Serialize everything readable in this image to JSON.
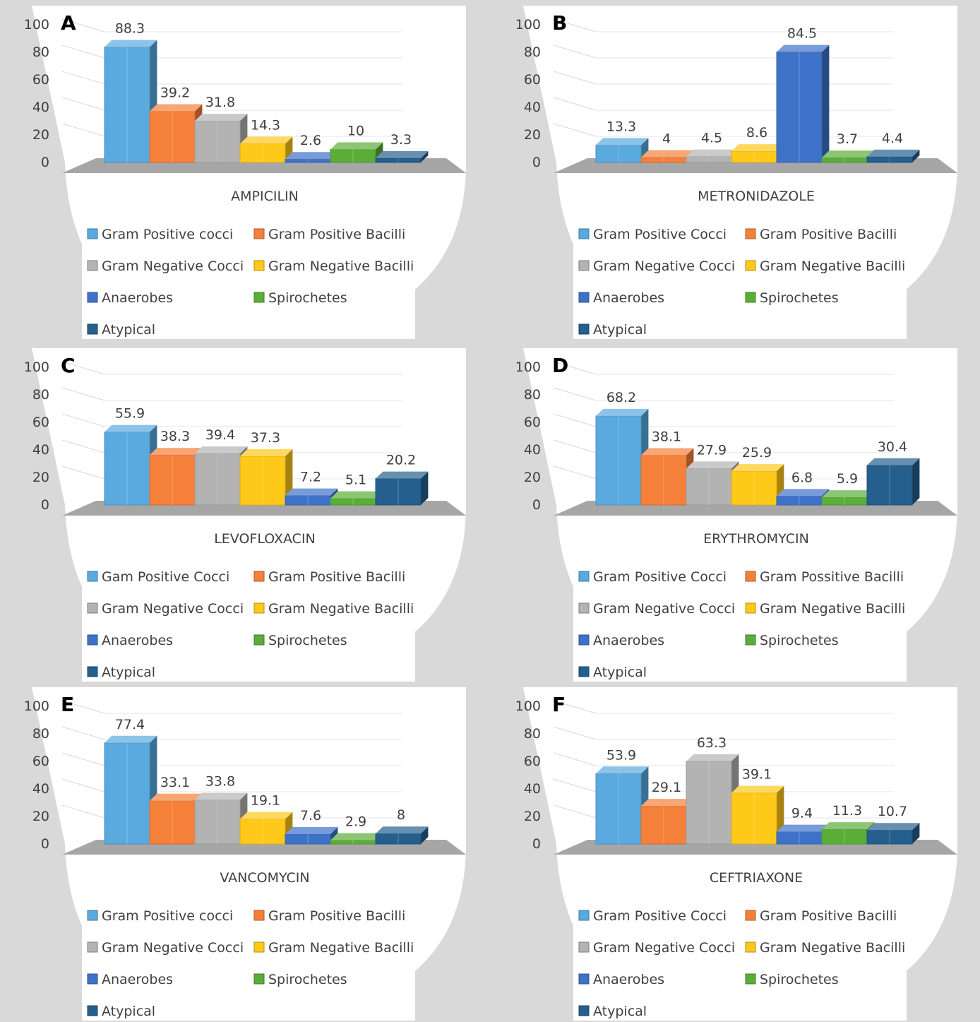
{
  "colors": {
    "gpc": "#5aaae0",
    "gpb": "#f5803a",
    "gnc": "#b3b3b3",
    "gnb": "#ffc91a",
    "anaerobes": "#3e72c8",
    "spirochetes": "#5aae38",
    "atypical": "#245f8e",
    "background": "#d9d9d9",
    "plot": "#ffffff",
    "floor": "#a6a6a6",
    "text": "#404040"
  },
  "chart_data": [
    {
      "type": "bar",
      "panel_label": "A",
      "categories": [
        "AMPICILIN"
      ],
      "xlabel": "AMPICILIN",
      "ylim": [
        0,
        100
      ],
      "yticks": [
        "0",
        "20",
        "40",
        "60",
        "80",
        "100"
      ],
      "legend_position": "bottom",
      "series": [
        {
          "name": "Gram Positive cocci",
          "color_key": "gpc",
          "values": [
            88.3
          ],
          "label": "88.3"
        },
        {
          "name": "Gram Positive Bacilli",
          "color_key": "gpb",
          "values": [
            39.2
          ],
          "label": "39.2"
        },
        {
          "name": "Gram Negative Cocci",
          "color_key": "gnc",
          "values": [
            31.8
          ],
          "label": "31.8"
        },
        {
          "name": "Gram Negative Bacilli",
          "color_key": "gnb",
          "values": [
            14.3
          ],
          "label": "14.3"
        },
        {
          "name": "Anaerobes",
          "color_key": "anaerobes",
          "values": [
            2.6
          ],
          "label": "2.6"
        },
        {
          "name": "Spirochetes",
          "color_key": "spirochetes",
          "values": [
            10
          ],
          "label": "10"
        },
        {
          "name": "Atypical",
          "color_key": "atypical",
          "values": [
            3.3
          ],
          "label": "3.3"
        }
      ]
    },
    {
      "type": "bar",
      "panel_label": "B",
      "categories": [
        "METRONIDAZOLE"
      ],
      "xlabel": "METRONIDAZOLE",
      "ylim": [
        0,
        100
      ],
      "yticks": [
        "0",
        "20",
        "40",
        "60",
        "80",
        "100"
      ],
      "legend_position": "bottom",
      "series": [
        {
          "name": "Gram Positive Cocci",
          "color_key": "gpc",
          "values": [
            13.3
          ],
          "label": "13.3"
        },
        {
          "name": "Gram Positive Bacilli",
          "color_key": "gpb",
          "values": [
            4
          ],
          "label": "4"
        },
        {
          "name": "Gram Negative Cocci",
          "color_key": "gnc",
          "values": [
            4.5
          ],
          "label": "4.5"
        },
        {
          "name": "Gram Negative Bacilli",
          "color_key": "gnb",
          "values": [
            8.6
          ],
          "label": "8.6"
        },
        {
          "name": "Anaerobes",
          "color_key": "anaerobes",
          "values": [
            84.5
          ],
          "label": "84.5"
        },
        {
          "name": "Spirochetes",
          "color_key": "spirochetes",
          "values": [
            3.7
          ],
          "label": "3.7"
        },
        {
          "name": "Atypical",
          "color_key": "atypical",
          "values": [
            4.4
          ],
          "label": "4.4"
        }
      ]
    },
    {
      "type": "bar",
      "panel_label": "C",
      "categories": [
        "LEVOFLOXACIN"
      ],
      "xlabel": "LEVOFLOXACIN",
      "ylim": [
        0,
        100
      ],
      "yticks": [
        "0",
        "20",
        "40",
        "60",
        "80",
        "100"
      ],
      "legend_position": "bottom",
      "series": [
        {
          "name": "Gam Positive Cocci",
          "color_key": "gpc",
          "values": [
            55.9
          ],
          "label": "55.9"
        },
        {
          "name": "Gram Positive Bacilli",
          "color_key": "gpb",
          "values": [
            38.3
          ],
          "label": "38.3"
        },
        {
          "name": "Gram Negative Cocci",
          "color_key": "gnc",
          "values": [
            39.4
          ],
          "label": "39.4"
        },
        {
          "name": "Gram Negative Bacilli",
          "color_key": "gnb",
          "values": [
            37.3
          ],
          "label": "37.3"
        },
        {
          "name": "Anaerobes",
          "color_key": "anaerobes",
          "values": [
            7.2
          ],
          "label": "7.2"
        },
        {
          "name": "Spirochetes",
          "color_key": "spirochetes",
          "values": [
            5.1
          ],
          "label": "5.1"
        },
        {
          "name": "Atypical",
          "color_key": "atypical",
          "values": [
            20.2
          ],
          "label": "20.2"
        }
      ]
    },
    {
      "type": "bar",
      "panel_label": "D",
      "categories": [
        "ERYTHROMYCIN"
      ],
      "xlabel": "ERYTHROMYCIN",
      "ylim": [
        0,
        100
      ],
      "yticks": [
        "0",
        "20",
        "40",
        "60",
        "80",
        "100"
      ],
      "legend_position": "bottom",
      "series": [
        {
          "name": "Gram Positive Cocci",
          "color_key": "gpc",
          "values": [
            68.2
          ],
          "label": "68.2"
        },
        {
          "name": "Gram Possitive Bacilli",
          "color_key": "gpb",
          "values": [
            38.1
          ],
          "label": "38.1"
        },
        {
          "name": "Gram Negative Cocci",
          "color_key": "gnc",
          "values": [
            27.9
          ],
          "label": "27.9"
        },
        {
          "name": "Gram Negative Bacilli",
          "color_key": "gnb",
          "values": [
            25.9
          ],
          "label": "25.9"
        },
        {
          "name": "Anaerobes",
          "color_key": "anaerobes",
          "values": [
            6.8
          ],
          "label": "6.8"
        },
        {
          "name": "Spirochetes",
          "color_key": "spirochetes",
          "values": [
            5.9
          ],
          "label": "5.9"
        },
        {
          "name": "Atypical",
          "color_key": "atypical",
          "values": [
            30.4
          ],
          "label": "30.4"
        }
      ]
    },
    {
      "type": "bar",
      "panel_label": "E",
      "categories": [
        "VANCOMYCIN"
      ],
      "xlabel": "VANCOMYCIN",
      "ylim": [
        0,
        100
      ],
      "yticks": [
        "0",
        "20",
        "40",
        "60",
        "80",
        "100"
      ],
      "legend_position": "bottom",
      "series": [
        {
          "name": "Gram Positive cocci",
          "color_key": "gpc",
          "values": [
            77.4
          ],
          "label": "77.4"
        },
        {
          "name": "Gram Positive Bacilli",
          "color_key": "gpb",
          "values": [
            33.1
          ],
          "label": "33.1"
        },
        {
          "name": "Gram Negative Cocci",
          "color_key": "gnc",
          "values": [
            33.8
          ],
          "label": "33.8"
        },
        {
          "name": "Gram Negative Bacilli",
          "color_key": "gnb",
          "values": [
            19.1
          ],
          "label": "19.1"
        },
        {
          "name": "Anaerobes",
          "color_key": "anaerobes",
          "values": [
            7.6
          ],
          "label": "7.6"
        },
        {
          "name": "Spirochetes",
          "color_key": "spirochetes",
          "values": [
            2.9
          ],
          "label": "2.9"
        },
        {
          "name": "Atypical",
          "color_key": "atypical",
          "values": [
            8
          ],
          "label": "8"
        }
      ]
    },
    {
      "type": "bar",
      "panel_label": "F",
      "categories": [
        "CEFTRIAXONE"
      ],
      "xlabel": "CEFTRIAXONE",
      "ylim": [
        0,
        100
      ],
      "yticks": [
        "0",
        "20",
        "40",
        "60",
        "80",
        "100"
      ],
      "legend_position": "bottom",
      "series": [
        {
          "name": "Gram Positive Cocci",
          "color_key": "gpc",
          "values": [
            53.9
          ],
          "label": "53.9"
        },
        {
          "name": "Gram Positive Bacilli",
          "color_key": "gpb",
          "values": [
            29.1
          ],
          "label": "29.1"
        },
        {
          "name": "Gram Negative Cocci",
          "color_key": "gnc",
          "values": [
            63.3
          ],
          "label": "63.3"
        },
        {
          "name": "Gram Negative Bacilli",
          "color_key": "gnb",
          "values": [
            39.1
          ],
          "label": "39.1"
        },
        {
          "name": "Anaerobes",
          "color_key": "anaerobes",
          "values": [
            9.4
          ],
          "label": "9.4"
        },
        {
          "name": "Spirochetes",
          "color_key": "spirochetes",
          "values": [
            11.3
          ],
          "label": "11.3"
        },
        {
          "name": "Atypical",
          "color_key": "atypical",
          "values": [
            10.7
          ],
          "label": "10.7"
        }
      ]
    }
  ]
}
